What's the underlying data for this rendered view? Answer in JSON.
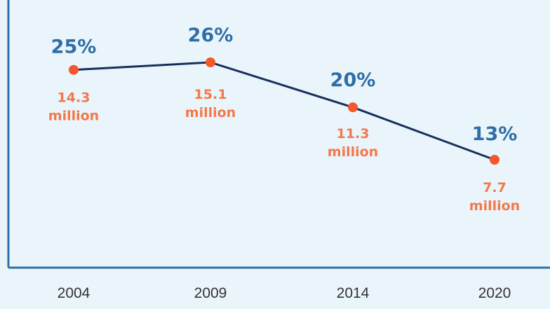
{
  "chart_data": {
    "type": "line",
    "categories": [
      "2004",
      "2009",
      "2014",
      "2020"
    ],
    "values": [
      25,
      26,
      20,
      13
    ],
    "value_labels": [
      "25%",
      "26%",
      "20%",
      "13%"
    ],
    "secondary_labels": [
      [
        "14.3",
        "million"
      ],
      [
        "15.1",
        "million"
      ],
      [
        "11.3",
        "million"
      ],
      [
        "7.7",
        "million"
      ]
    ],
    "secondary_values": [
      14.3,
      15.1,
      11.3,
      7.7
    ],
    "title": "",
    "xlabel": "",
    "ylabel": "",
    "grid": false,
    "legend": "none",
    "colors": {
      "background": "#eaf5fb",
      "line": "#16305a",
      "marker": "#f4572b",
      "percent_label": "#2f6ea6",
      "million_label": "#f4784a",
      "axis": "#2f6ea6",
      "tick_label": "#333333"
    }
  }
}
